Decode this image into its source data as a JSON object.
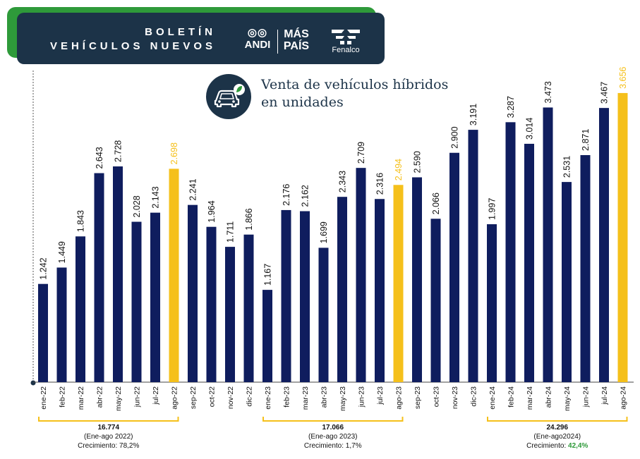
{
  "header": {
    "line1": "BOLETÍN",
    "line2": "VEHÍCULOS NUEVOS",
    "logos": {
      "andi": "ANDI",
      "maspais_line1": "MÁS",
      "maspais_line2": "PAÍS",
      "fenalco": "Fenalco"
    }
  },
  "chart_icon": "hybrid-car-leaf-icon",
  "chart_title_line1": "Venta de vehículos híbridos",
  "chart_title_line2": "en unidades",
  "colors": {
    "navy": "#0f1d5e",
    "highlight": "#f5c01b",
    "header": "#1c3348",
    "green": "#2e9a3a"
  },
  "chart_data": {
    "type": "bar",
    "title": "Venta de vehículos híbridos en unidades",
    "categories": [
      "ene-22",
      "feb-22",
      "mar-22",
      "abr-22",
      "may-22",
      "jun-22",
      "jul-22",
      "ago-22",
      "sep-22",
      "oct-22",
      "nov-22",
      "dic-22",
      "ene-23",
      "feb-23",
      "mar-23",
      "abr-23",
      "may-23",
      "jun-23",
      "jul-23",
      "ago-23",
      "sep-23",
      "oct-23",
      "nov-23",
      "dic-23",
      "ene-24",
      "feb-24",
      "mar-24",
      "abr-24",
      "may-24",
      "jun-24",
      "jul-24",
      "ago-24"
    ],
    "values": [
      1242,
      1449,
      1843,
      2643,
      2728,
      2028,
      2143,
      2698,
      2241,
      1964,
      1711,
      1866,
      1167,
      2176,
      2162,
      1699,
      2343,
      2709,
      2316,
      2494,
      2590,
      2066,
      2900,
      3191,
      1997,
      3287,
      3014,
      3473,
      2531,
      2871,
      3467,
      3656
    ],
    "labels": [
      "1.242",
      "1.449",
      "1.843",
      "2.643",
      "2.728",
      "2.028",
      "2.143",
      "2.698",
      "2.241",
      "1.964",
      "1.711",
      "1.866",
      "1.167",
      "2.176",
      "2.162",
      "1.699",
      "2.343",
      "2.709",
      "2.316",
      "2.494",
      "2.590",
      "2.066",
      "2.900",
      "3.191",
      "1.997",
      "3.287",
      "3.014",
      "3.473",
      "2.531",
      "2.871",
      "3.467",
      "3.656"
    ],
    "highlighted": [
      "ago-22",
      "ago-23",
      "ago-24"
    ],
    "ylim": [
      0,
      3700
    ],
    "grid": false
  },
  "summaries": [
    {
      "total": "16.774",
      "period": "(Ene-ago 2022)",
      "growth_label": "Crecimiento: ",
      "growth_value": "78,2%",
      "from": "ene-22",
      "to": "ago-22",
      "emphasis": false
    },
    {
      "total": "17.066",
      "period": "(Ene-ago 2023)",
      "growth_label": "Crecimiento: ",
      "growth_value": "1,7%",
      "from": "ene-23",
      "to": "ago-23",
      "emphasis": false
    },
    {
      "total": "24.296",
      "period": "(Ene-ago2024)",
      "growth_label": "Crecimiento: ",
      "growth_value": "42,4%",
      "from": "ene-24",
      "to": "ago-24",
      "emphasis": true
    }
  ]
}
